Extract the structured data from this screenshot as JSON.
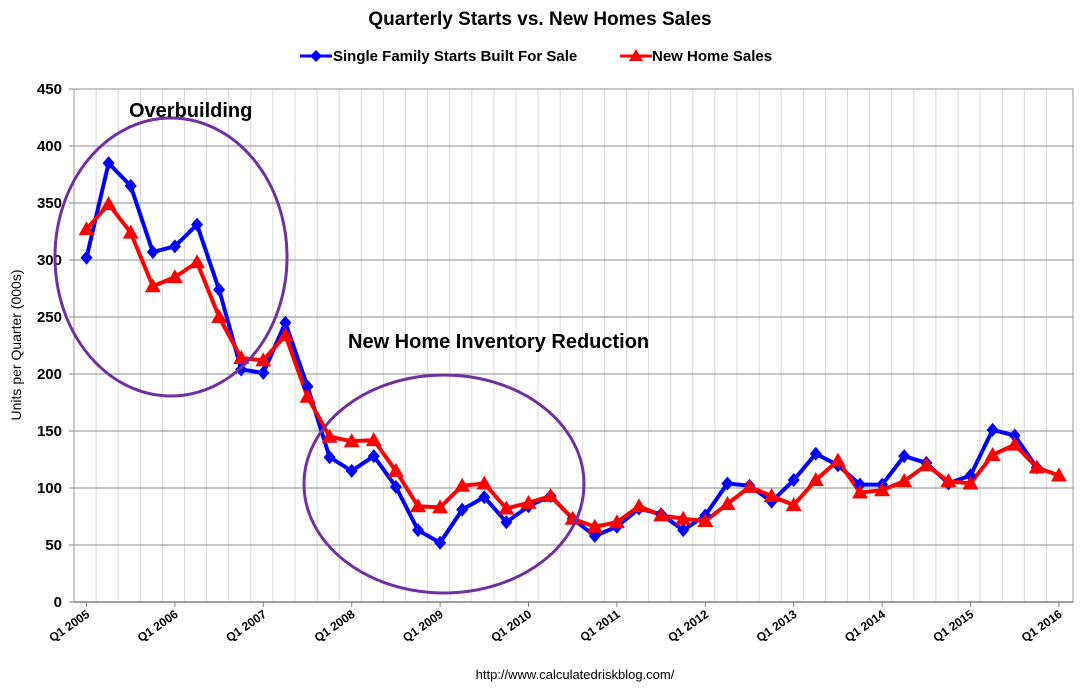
{
  "chart_data": {
    "type": "line",
    "title": "Quarterly Starts vs. New Homes Sales",
    "ylabel": "Units per Quarter (000s)",
    "xlabel": "",
    "ylim": [
      0,
      450
    ],
    "yticks": [
      0,
      50,
      100,
      150,
      200,
      250,
      300,
      350,
      400,
      450
    ],
    "xtick_labels": [
      "Q1 2005",
      "Q1 2006",
      "Q1 2007",
      "Q1 2008",
      "Q1 2009",
      "Q1 2010",
      "Q1 2011",
      "Q1 2012",
      "Q1 2013",
      "Q1 2014",
      "Q1 2015",
      "Q1 2016"
    ],
    "legend_position": "top-center",
    "grid": true,
    "series": [
      {
        "name": "Single Family Starts Built For Sale",
        "color": "#0000ff",
        "marker": "diamond",
        "values": [
          302,
          385,
          365,
          307,
          312,
          331,
          274,
          204,
          201,
          245,
          189,
          127,
          115,
          128,
          101,
          63,
          52,
          81,
          92,
          70,
          84,
          93,
          73,
          58,
          66,
          82,
          77,
          63,
          76,
          104,
          102,
          88,
          107,
          130,
          120,
          103,
          103,
          128,
          122,
          104,
          111,
          151,
          146,
          118
        ]
      },
      {
        "name": "New Home Sales",
        "color": "#ff0000",
        "marker": "triangle",
        "values": [
          327,
          349,
          324,
          277,
          285,
          298,
          250,
          214,
          212,
          234,
          180,
          145,
          141,
          142,
          115,
          84,
          83,
          102,
          104,
          82,
          87,
          93,
          73,
          66,
          70,
          84,
          76,
          73,
          71,
          86,
          101,
          93,
          85,
          107,
          124,
          96,
          98,
          106,
          120,
          106,
          104,
          129,
          138,
          118,
          111
        ]
      }
    ],
    "annotations": [
      {
        "text": "Overbuilding"
      },
      {
        "text": "New Home Inventory Reduction"
      }
    ],
    "source": "http://www.calculatedriskblog.com/"
  }
}
